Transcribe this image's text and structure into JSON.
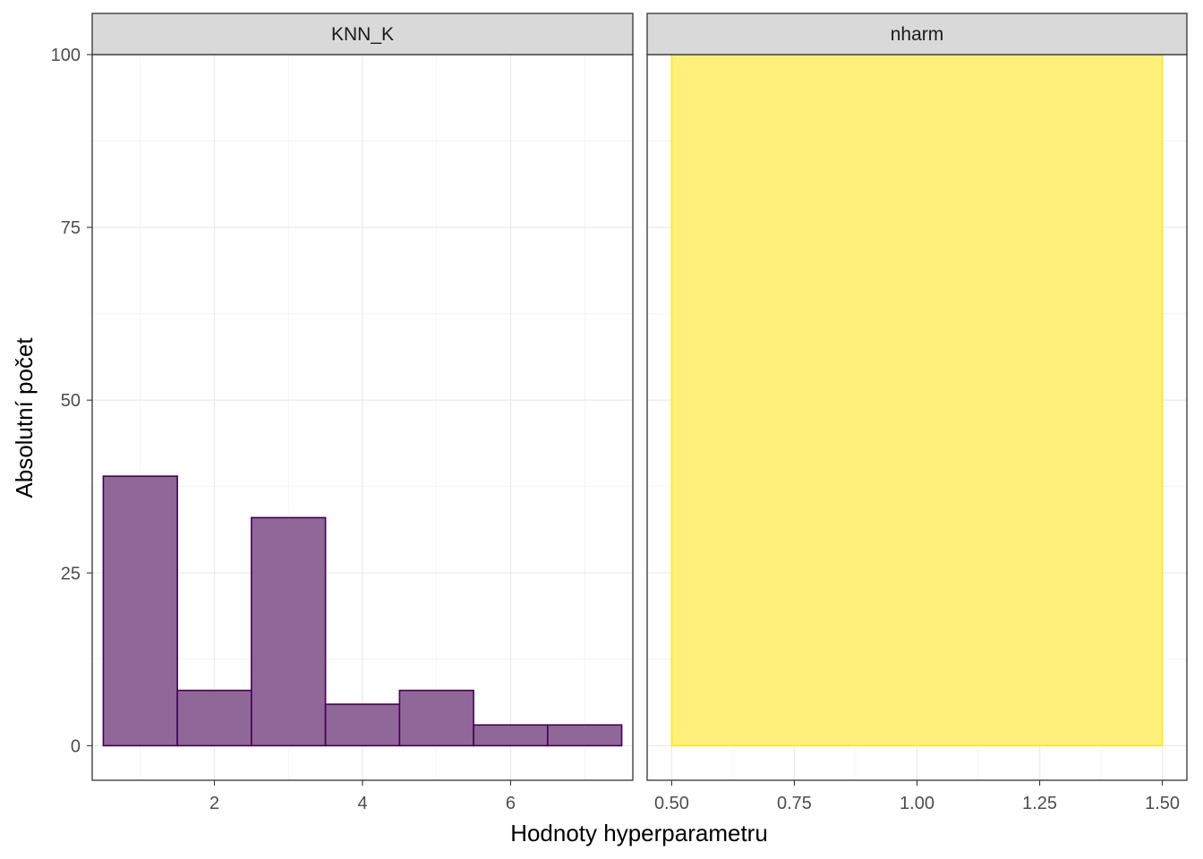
{
  "chart_data": {
    "type": "bar",
    "xlabel": "Hodnoty hyperparametru",
    "ylabel": "Absolutní počet",
    "ylim": [
      -5,
      100
    ],
    "y_ticks": [
      0,
      25,
      50,
      75,
      100
    ],
    "y_tick_labels": [
      "0",
      "25",
      "50",
      "75",
      "100"
    ],
    "y_minor": [
      12.5,
      37.5,
      62.5,
      87.5
    ],
    "grid": true,
    "panels": [
      {
        "title": "KNN_K",
        "xlim": [
          0.35,
          7.65
        ],
        "x_ticks": [
          2,
          4,
          6
        ],
        "x_tick_labels": [
          "2",
          "4",
          "6"
        ],
        "x_minor": [
          1,
          3,
          5,
          7
        ],
        "fill_color": "#8F6798",
        "stroke_color": "#440154",
        "bins": [
          {
            "x0": 0.5,
            "x1": 1.5,
            "count": 39
          },
          {
            "x0": 1.5,
            "x1": 2.5,
            "count": 8
          },
          {
            "x0": 2.5,
            "x1": 3.5,
            "count": 33
          },
          {
            "x0": 3.5,
            "x1": 4.5,
            "count": 6
          },
          {
            "x0": 4.5,
            "x1": 5.5,
            "count": 8
          },
          {
            "x0": 5.5,
            "x1": 6.5,
            "count": 3
          },
          {
            "x0": 6.5,
            "x1": 7.5,
            "count": 3
          }
        ]
      },
      {
        "title": "nharm",
        "xlim": [
          0.45,
          1.55
        ],
        "x_ticks": [
          0.5,
          0.75,
          1.0,
          1.25,
          1.5
        ],
        "x_tick_labels": [
          "0.50",
          "0.75",
          "1.00",
          "1.25",
          "1.50"
        ],
        "x_minor": [
          0.625,
          0.875,
          1.125,
          1.375
        ],
        "fill_color": "#FEF07A",
        "stroke_color": "#FDE725",
        "bins": [
          {
            "x0": 0.5,
            "x1": 1.5,
            "count": 100
          }
        ]
      }
    ]
  }
}
